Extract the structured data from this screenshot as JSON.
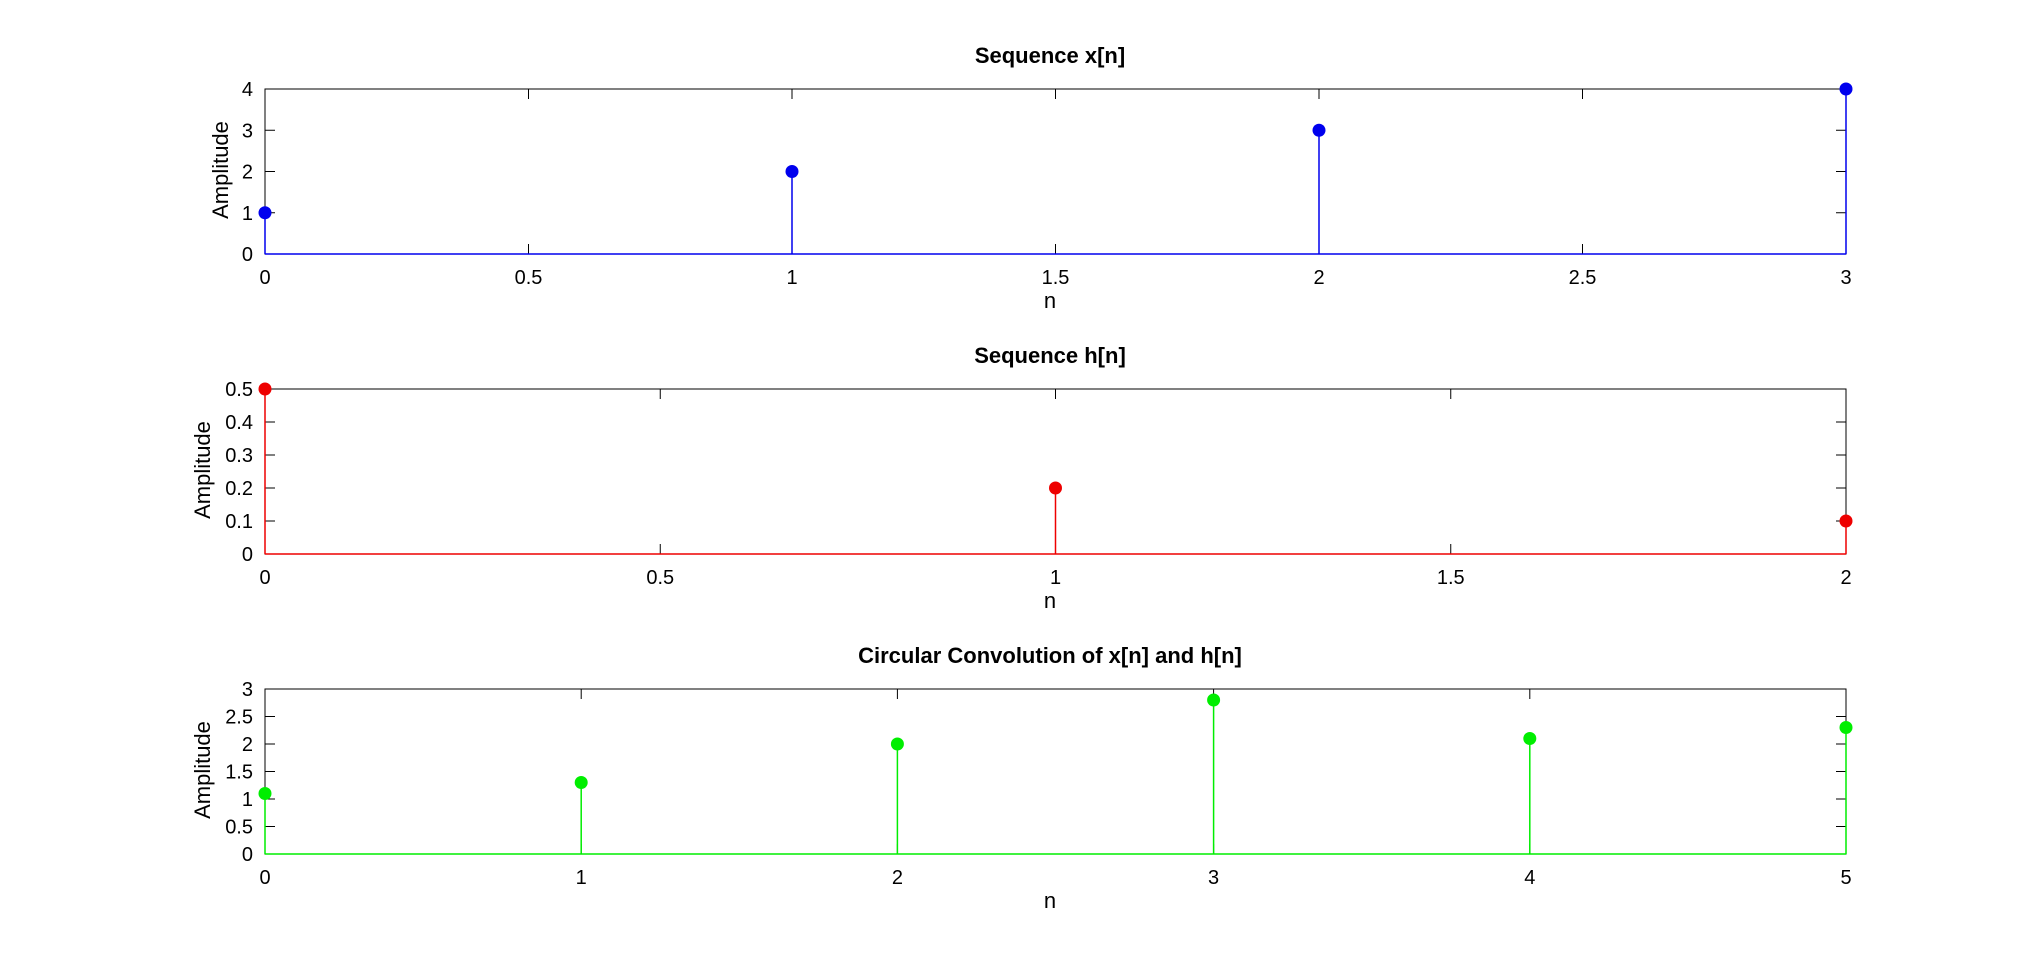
{
  "chart_data": [
    {
      "type": "stem",
      "title": "Sequence x[n]",
      "xlabel": "n",
      "ylabel": "Amplitude",
      "xlim": [
        0,
        3
      ],
      "ylim": [
        0,
        4
      ],
      "xticks": [
        0,
        0.5,
        1,
        1.5,
        2,
        2.5,
        3
      ],
      "yticks": [
        0,
        1,
        2,
        3,
        4
      ],
      "x": [
        0,
        1,
        2,
        3
      ],
      "values": [
        1,
        2,
        3,
        4
      ],
      "color": "#0000ee"
    },
    {
      "type": "stem",
      "title": "Sequence h[n]",
      "xlabel": "n",
      "ylabel": "Amplitude",
      "xlim": [
        0,
        2
      ],
      "ylim": [
        0,
        0.5
      ],
      "xticks": [
        0,
        0.5,
        1,
        1.5,
        2
      ],
      "yticks": [
        0,
        0.1,
        0.2,
        0.3,
        0.4,
        0.5
      ],
      "x": [
        0,
        1,
        2
      ],
      "values": [
        0.5,
        0.2,
        0.1
      ],
      "color": "#ee0000"
    },
    {
      "type": "stem",
      "title": "Circular Convolution of x[n] and h[n]",
      "xlabel": "n",
      "ylabel": "Amplitude",
      "xlim": [
        0,
        5
      ],
      "ylim": [
        0,
        3
      ],
      "xticks": [
        0,
        1,
        2,
        3,
        4,
        5
      ],
      "yticks": [
        0,
        0.5,
        1,
        1.5,
        2,
        2.5,
        3
      ],
      "x": [
        0,
        1,
        2,
        3,
        4,
        5
      ],
      "values": [
        1.1,
        1.3,
        2.0,
        2.8,
        2.1,
        2.3
      ],
      "color": "#00ee00"
    }
  ]
}
